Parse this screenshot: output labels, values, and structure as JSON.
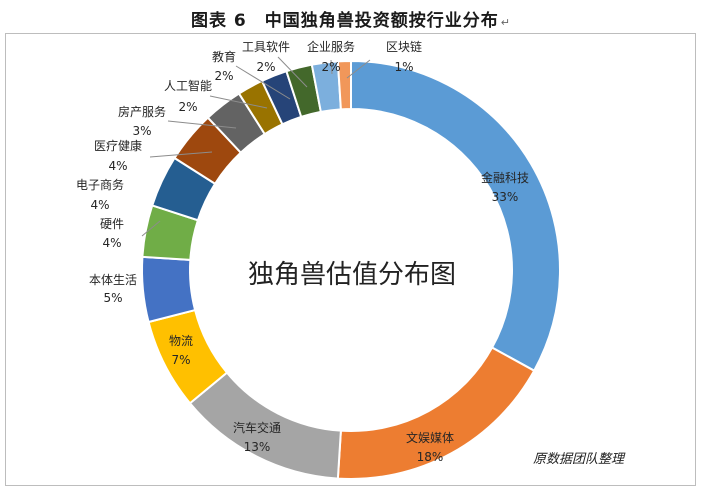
{
  "page": {
    "title": "图表 6　中国独角兽投资额按行业分布",
    "paragraph_mark": "↵",
    "credit": "原数据团队整理"
  },
  "chart_data": {
    "type": "pie",
    "variant": "doughnut",
    "title": "中国独角兽投资额按行业分布",
    "center_label": "独角兽估值分布图",
    "unit": "%",
    "slices": [
      {
        "label": "金融科技",
        "value": 33,
        "display": "33%",
        "color": "#5b9bd5"
      },
      {
        "label": "文娱媒体",
        "value": 18,
        "display": "18%",
        "color": "#ed7d31"
      },
      {
        "label": "汽车交通",
        "value": 13,
        "display": "13%",
        "color": "#a5a5a5"
      },
      {
        "label": "物流",
        "value": 7,
        "display": "7%",
        "color": "#ffc000"
      },
      {
        "label": "本体生活",
        "value": 5,
        "display": "5%",
        "color": "#4472c4"
      },
      {
        "label": "硬件",
        "value": 4,
        "display": "4%",
        "color": "#70ad47"
      },
      {
        "label": "电子商务",
        "value": 4,
        "display": "4%",
        "color": "#255e91"
      },
      {
        "label": "医疗健康",
        "value": 4,
        "display": "4%",
        "color": "#9e480e"
      },
      {
        "label": "房产服务",
        "value": 3,
        "display": "3%",
        "color": "#636363"
      },
      {
        "label": "人工智能",
        "value": 2,
        "display": "2%",
        "color": "#997300"
      },
      {
        "label": "教育",
        "value": 2,
        "display": "2%",
        "color": "#264478"
      },
      {
        "label": "工具软件",
        "value": 2,
        "display": "2%",
        "color": "#43682b"
      },
      {
        "label": "企业服务",
        "value": 2,
        "display": "2%",
        "color": "#7cafdd"
      },
      {
        "label": "区块链",
        "value": 1,
        "display": "1%",
        "color": "#f1975a"
      }
    ]
  }
}
